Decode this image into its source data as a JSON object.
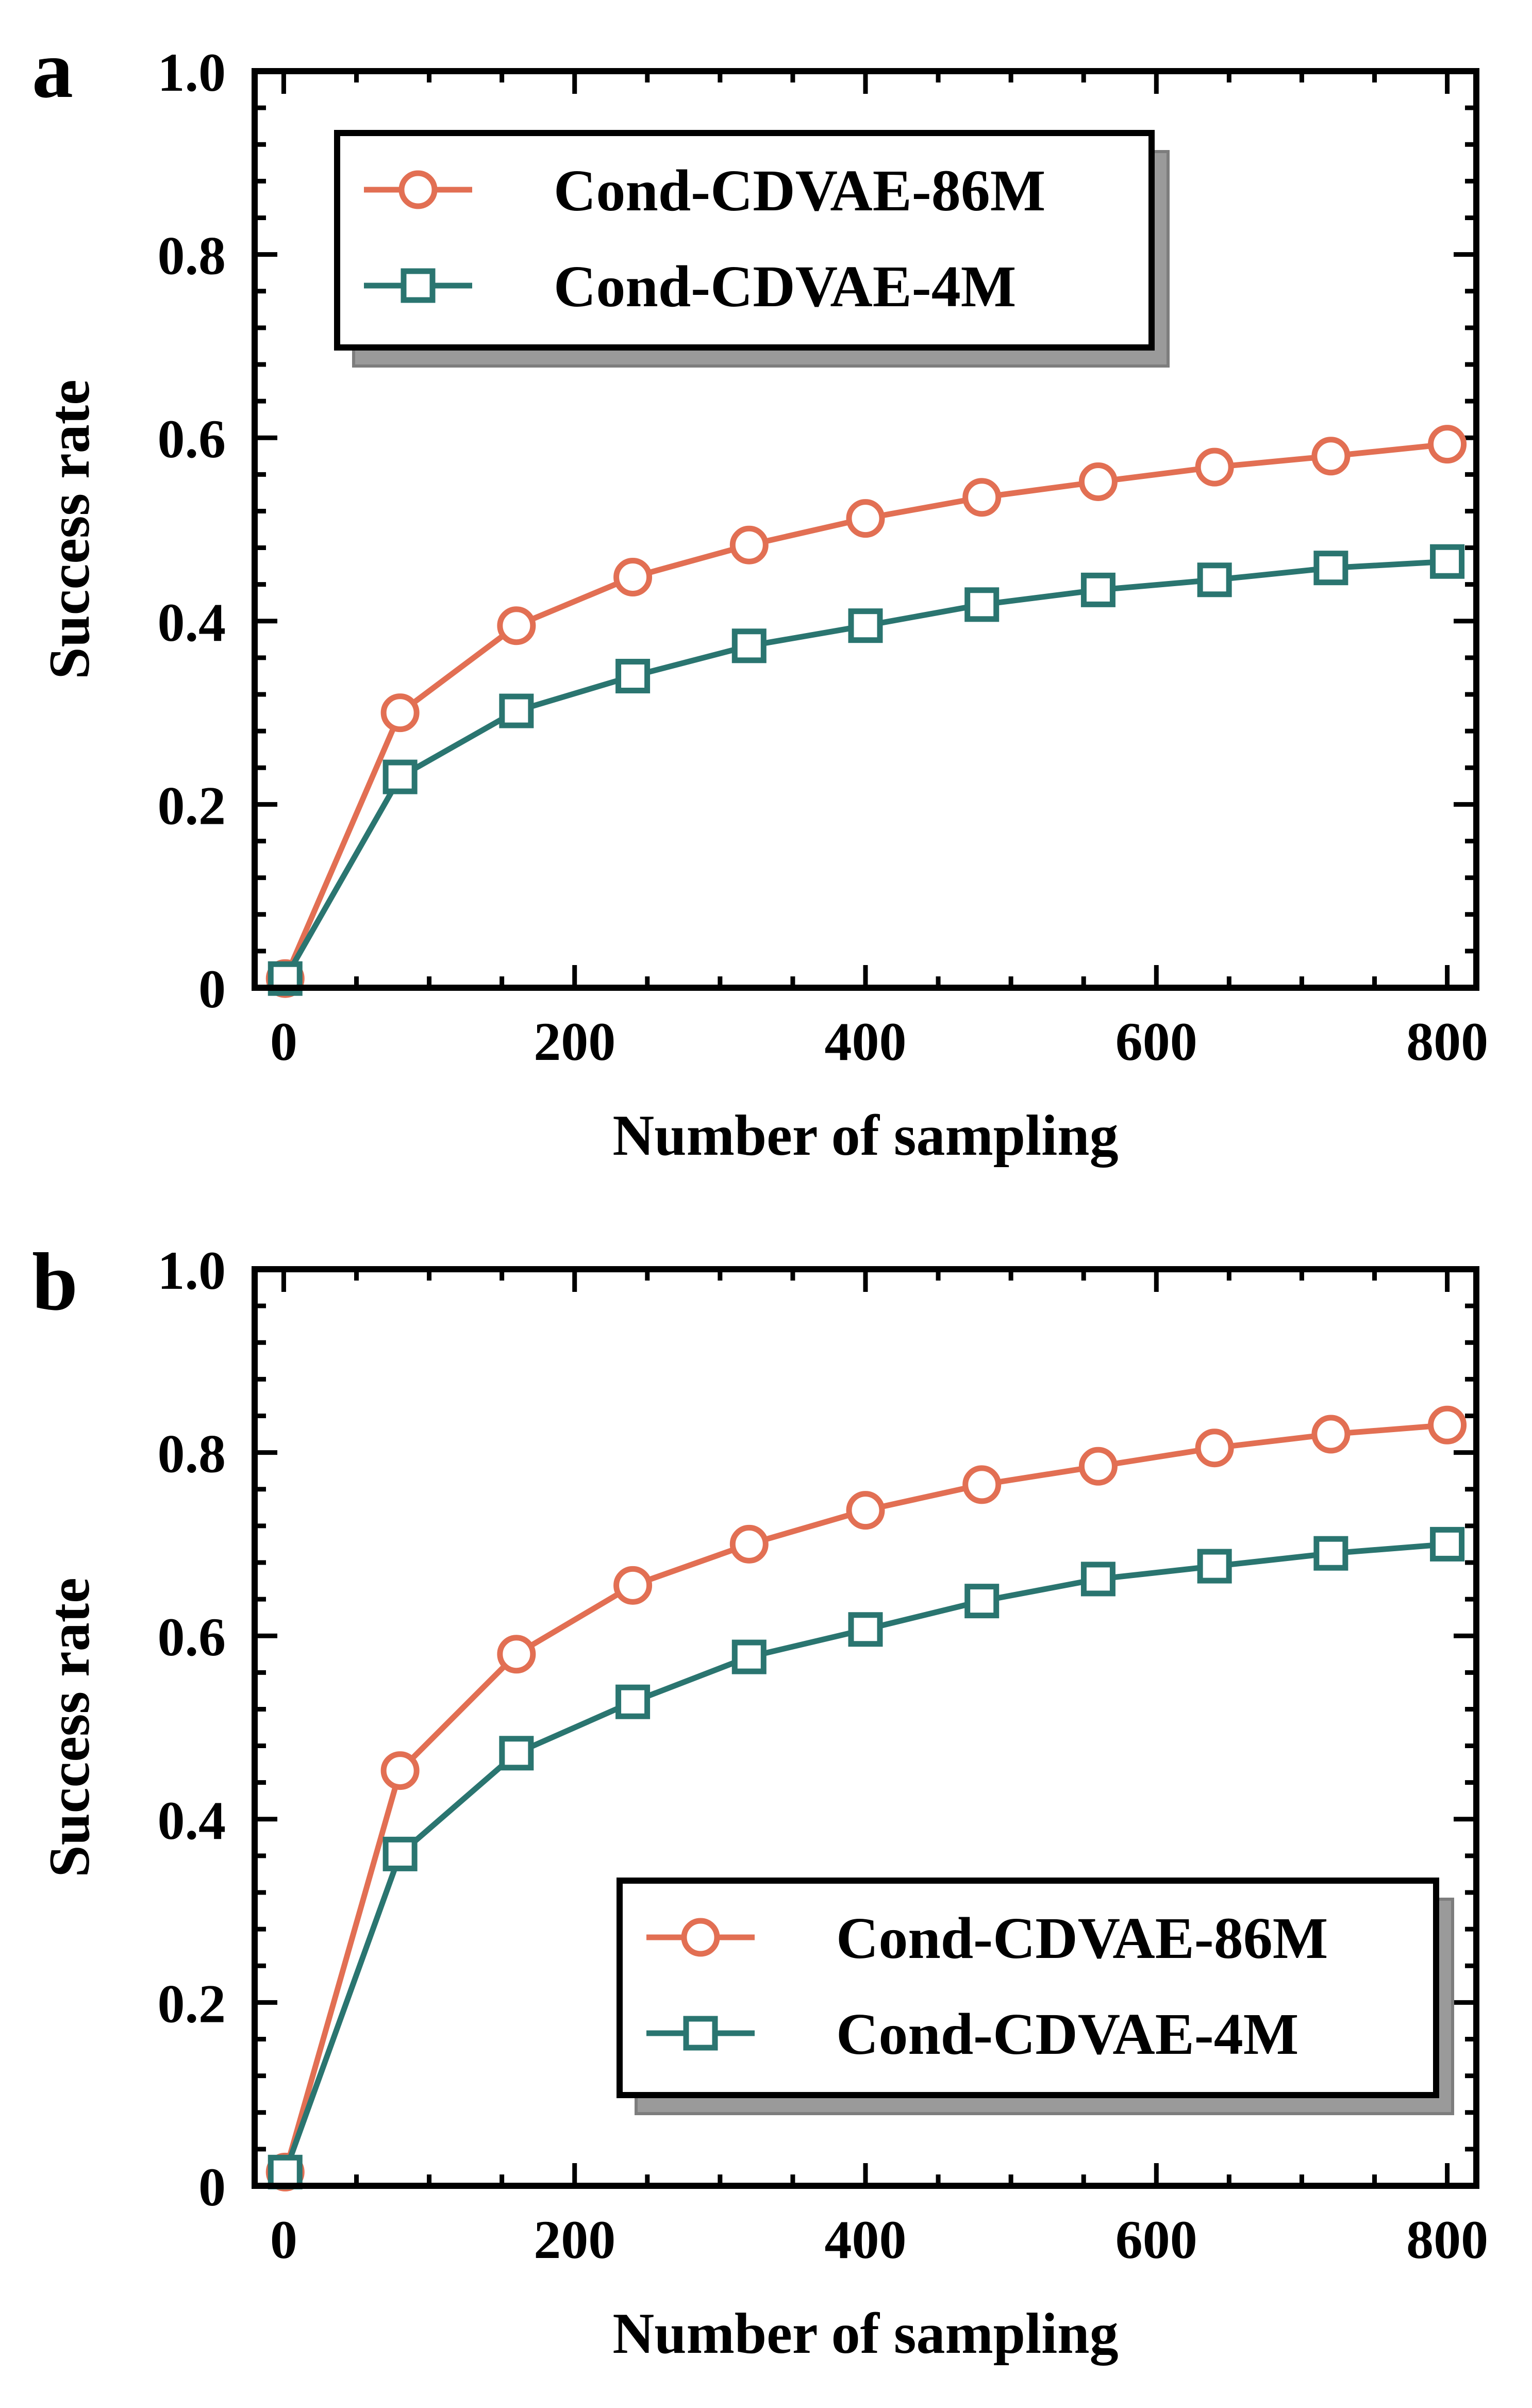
{
  "chart_data": [
    {
      "type": "line",
      "panel_label": "a",
      "xlabel": "Number of sampling",
      "ylabel": "Success rate",
      "xlim": [
        -20,
        820
      ],
      "ylim": [
        0,
        1.0
      ],
      "xticks": [
        0,
        200,
        400,
        600,
        800
      ],
      "xtick_labels": [
        "0",
        "200",
        "400",
        "600",
        "800"
      ],
      "yticks": [
        0,
        0.2,
        0.4,
        0.6,
        0.8,
        1.0
      ],
      "ytick_labels": [
        "0",
        "0.2",
        "0.4",
        "0.6",
        "0.8",
        "1.0"
      ],
      "legend_position": "upper-left",
      "x": [
        1,
        80,
        160,
        240,
        320,
        400,
        480,
        560,
        640,
        720,
        800
      ],
      "series": [
        {
          "name": "Cond-CDVAE-86M",
          "color": "#e26f53",
          "marker": "circle",
          "values": [
            0.01,
            0.3,
            0.395,
            0.448,
            0.483,
            0.512,
            0.535,
            0.552,
            0.568,
            0.58,
            0.593
          ]
        },
        {
          "name": "Cond-CDVAE-4M",
          "color": "#2a7570",
          "marker": "square",
          "values": [
            0.01,
            0.23,
            0.302,
            0.34,
            0.373,
            0.395,
            0.418,
            0.434,
            0.445,
            0.458,
            0.465
          ]
        }
      ]
    },
    {
      "type": "line",
      "panel_label": "b",
      "xlabel": "Number of sampling",
      "ylabel": "Success rate",
      "xlim": [
        -20,
        820
      ],
      "ylim": [
        0,
        1.0
      ],
      "xticks": [
        0,
        200,
        400,
        600,
        800
      ],
      "xtick_labels": [
        "0",
        "200",
        "400",
        "600",
        "800"
      ],
      "yticks": [
        0,
        0.2,
        0.4,
        0.6,
        0.8,
        1.0
      ],
      "ytick_labels": [
        "0",
        "0.2",
        "0.4",
        "0.6",
        "0.8",
        "1.0"
      ],
      "legend_position": "lower-right",
      "x": [
        1,
        80,
        160,
        240,
        320,
        400,
        480,
        560,
        640,
        720,
        800
      ],
      "series": [
        {
          "name": "Cond-CDVAE-86M",
          "color": "#e26f53",
          "marker": "circle",
          "values": [
            0.015,
            0.453,
            0.58,
            0.655,
            0.7,
            0.737,
            0.765,
            0.785,
            0.805,
            0.82,
            0.83
          ]
        },
        {
          "name": "Cond-CDVAE-4M",
          "color": "#2a7570",
          "marker": "square",
          "values": [
            0.015,
            0.362,
            0.472,
            0.528,
            0.577,
            0.607,
            0.638,
            0.662,
            0.676,
            0.69,
            0.7
          ]
        }
      ]
    }
  ]
}
